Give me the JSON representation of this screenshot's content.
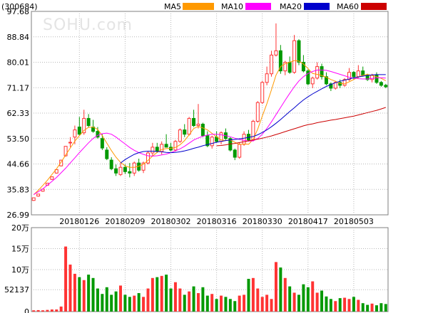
{
  "header": {
    "code": "(300684)",
    "watermark": "SOHU.com"
  },
  "legend": [
    {
      "label": "MA5",
      "color": "#ff9900"
    },
    {
      "label": "MA10",
      "color": "#ff00ff"
    },
    {
      "label": "MA20",
      "color": "#0000cc"
    },
    {
      "label": "MA60",
      "color": "#cc0000"
    }
  ],
  "colors": {
    "up": "#ff3333",
    "down": "#009900"
  },
  "chart_data": [
    {
      "type": "candlestick",
      "title": "",
      "y_ticks": [
        "97.68",
        "88.84",
        "80.01",
        "71.17",
        "62.33",
        "53.50",
        "44.66",
        "35.83",
        "26.99"
      ],
      "ylim": [
        26.99,
        97.68
      ],
      "x_ticks": [
        {
          "index": 10,
          "label": "20180126"
        },
        {
          "index": 20,
          "label": "20180209"
        },
        {
          "index": 30,
          "label": "20180302"
        },
        {
          "index": 40,
          "label": "20180316"
        },
        {
          "index": 50,
          "label": "20180330"
        },
        {
          "index": 60,
          "label": "20180417"
        },
        {
          "index": 70,
          "label": "20180503"
        }
      ],
      "grid": true,
      "ohlc": [
        [
          32.0,
          32.9,
          31.8,
          32.9
        ],
        [
          33.5,
          34.2,
          33.3,
          34.2
        ],
        [
          35.2,
          35.9,
          35.0,
          35.9
        ],
        [
          37.3,
          38.0,
          37.1,
          38.0
        ],
        [
          39.3,
          40.2,
          39.1,
          40.2
        ],
        [
          41.5,
          42.7,
          41.3,
          42.7
        ],
        [
          44.0,
          46.0,
          43.8,
          46.0
        ],
        [
          47.5,
          50.8,
          47.2,
          50.8
        ],
        [
          52.0,
          54.0,
          50.5,
          52.2
        ],
        [
          54.0,
          58.0,
          51.5,
          56.5
        ],
        [
          57.5,
          61.0,
          54.5,
          55.0
        ],
        [
          55.5,
          63.5,
          54.8,
          60.5
        ],
        [
          60.5,
          62.0,
          57.5,
          58.0
        ],
        [
          57.5,
          60.0,
          55.5,
          56.0
        ],
        [
          56.0,
          57.5,
          53.5,
          54.0
        ],
        [
          53.5,
          55.0,
          49.5,
          50.2
        ],
        [
          49.5,
          50.5,
          46.0,
          46.5
        ],
        [
          46.0,
          47.0,
          42.5,
          43.0
        ],
        [
          43.0,
          44.5,
          40.5,
          41.5
        ],
        [
          41.0,
          45.0,
          40.5,
          43.5
        ],
        [
          43.5,
          44.5,
          41.2,
          42.0
        ],
        [
          42.0,
          45.0,
          40.0,
          41.5
        ],
        [
          41.5,
          45.5,
          40.5,
          45.0
        ],
        [
          45.0,
          46.5,
          42.0,
          42.5
        ],
        [
          42.5,
          45.5,
          41.5,
          45.0
        ],
        [
          45.0,
          49.0,
          44.5,
          48.5
        ],
        [
          48.5,
          52.0,
          47.5,
          50.5
        ],
        [
          50.5,
          52.0,
          48.5,
          49.0
        ],
        [
          49.0,
          52.5,
          48.0,
          51.5
        ],
        [
          51.5,
          55.0,
          50.5,
          50.5
        ],
        [
          50.5,
          52.0,
          49.0,
          49.5
        ],
        [
          49.5,
          53.0,
          49.0,
          52.5
        ],
        [
          52.5,
          57.0,
          52.0,
          56.5
        ],
        [
          56.5,
          58.5,
          54.0,
          55.0
        ],
        [
          55.0,
          61.0,
          54.5,
          60.5
        ],
        [
          60.5,
          63.5,
          57.5,
          58.0
        ],
        [
          58.0,
          65.5,
          57.0,
          58.5
        ],
        [
          58.5,
          59.0,
          54.0,
          54.5
        ],
        [
          54.5,
          56.0,
          50.5,
          51.0
        ],
        [
          51.0,
          54.5,
          50.0,
          54.0
        ],
        [
          54.0,
          56.0,
          52.0,
          52.5
        ],
        [
          52.5,
          56.0,
          51.5,
          55.5
        ],
        [
          55.5,
          57.0,
          53.0,
          53.5
        ],
        [
          53.5,
          54.0,
          49.0,
          49.5
        ],
        [
          49.5,
          50.0,
          46.0,
          47.0
        ],
        [
          47.0,
          52.0,
          46.5,
          51.5
        ],
        [
          51.5,
          56.0,
          51.0,
          55.0
        ],
        [
          55.0,
          56.5,
          52.5,
          53.0
        ],
        [
          53.0,
          60.0,
          52.5,
          59.5
        ],
        [
          59.5,
          66.5,
          59.0,
          66.0
        ],
        [
          66.0,
          73.5,
          65.5,
          73.0
        ],
        [
          73.0,
          78.5,
          72.0,
          76.0
        ],
        [
          76.0,
          84.0,
          75.0,
          82.5
        ],
        [
          82.5,
          93.5,
          82.0,
          84.0
        ],
        [
          84.0,
          86.0,
          76.0,
          77.0
        ],
        [
          77.0,
          80.5,
          75.5,
          80.0
        ],
        [
          80.0,
          82.0,
          76.0,
          76.5
        ],
        [
          76.5,
          89.5,
          76.0,
          87.5
        ],
        [
          87.5,
          88.0,
          79.0,
          80.0
        ],
        [
          80.0,
          82.5,
          76.5,
          77.0
        ],
        [
          77.0,
          77.5,
          72.0,
          72.5
        ],
        [
          72.5,
          75.0,
          71.0,
          74.5
        ],
        [
          74.5,
          80.0,
          74.0,
          78.5
        ],
        [
          78.5,
          79.5,
          74.0,
          75.0
        ],
        [
          75.0,
          76.5,
          72.0,
          72.5
        ],
        [
          72.5,
          73.0,
          70.0,
          71.0
        ],
        [
          71.0,
          73.5,
          70.5,
          73.0
        ],
        [
          73.0,
          74.0,
          71.0,
          72.0
        ],
        [
          72.0,
          74.5,
          71.5,
          74.0
        ],
        [
          74.0,
          78.0,
          73.5,
          76.5
        ],
        [
          76.5,
          77.0,
          74.0,
          75.0
        ],
        [
          75.0,
          79.0,
          74.5,
          77.0
        ],
        [
          77.0,
          78.5,
          75.0,
          75.5
        ],
        [
          75.5,
          76.0,
          73.5,
          74.0
        ],
        [
          74.0,
          76.0,
          73.0,
          75.5
        ],
        [
          75.5,
          76.5,
          72.5,
          73.0
        ],
        [
          73.0,
          73.5,
          71.5,
          72.0
        ],
        [
          72.0,
          72.5,
          71.0,
          71.5
        ]
      ],
      "ma": {
        "MA5": [
          34.0,
          35.5,
          37.2,
          39.0,
          41.0,
          43.0,
          45.3,
          47.8,
          50.2,
          52.6,
          54.5,
          56.3,
          57.4,
          57.5,
          56.7,
          54.5,
          51.9,
          49.3,
          47.0,
          45.2,
          44.0,
          43.5,
          43.5,
          43.9,
          44.6,
          45.9,
          47.4,
          48.7,
          49.7,
          50.0,
          50.1,
          50.4,
          51.3,
          52.8,
          54.8,
          57.0,
          57.7,
          57.2,
          56.5,
          55.3,
          54.1,
          53.0,
          52.8,
          53.0,
          52.2,
          51.4,
          51.6,
          51.5,
          53.2,
          56.8,
          61.3,
          65.6,
          70.4,
          75.5,
          78.5,
          79.5,
          80.0,
          80.6,
          80.4,
          79.4,
          77.8,
          76.1,
          75.8,
          75.4,
          74.8,
          74.0,
          73.4,
          72.7,
          72.5,
          73.2,
          74.0,
          74.8,
          75.5,
          75.8,
          75.4,
          75.0,
          74.4,
          73.6
        ],
        "MA10": [
          34.0,
          35.0,
          36.0,
          37.3,
          38.6,
          40.0,
          41.6,
          43.2,
          45.0,
          46.8,
          48.6,
          50.3,
          52.0,
          53.5,
          54.6,
          55.2,
          55.4,
          55.0,
          54.0,
          52.8,
          51.6,
          50.4,
          49.4,
          48.6,
          48.0,
          47.5,
          47.4,
          47.5,
          47.8,
          48.1,
          48.6,
          49.2,
          49.9,
          50.8,
          51.9,
          53.0,
          53.7,
          54.3,
          54.7,
          55.0,
          55.0,
          54.8,
          54.5,
          54.1,
          53.6,
          53.2,
          52.9,
          52.6,
          52.7,
          53.5,
          55.0,
          57.0,
          59.3,
          61.8,
          64.3,
          66.8,
          69.2,
          71.5,
          73.5,
          75.0,
          76.1,
          76.8,
          77.3,
          77.3,
          77.2,
          76.8,
          76.3,
          75.8,
          75.3,
          74.8,
          74.5,
          74.3,
          74.2,
          74.2,
          74.4,
          74.6,
          74.6,
          74.5
        ],
        "MA20": [
          null,
          null,
          null,
          null,
          null,
          null,
          null,
          null,
          null,
          null,
          null,
          null,
          null,
          null,
          null,
          null,
          null,
          null,
          null,
          45.0,
          46.2,
          47.1,
          48.0,
          48.6,
          49.0,
          49.1,
          49.1,
          49.0,
          48.9,
          48.7,
          48.6,
          48.7,
          48.9,
          49.2,
          49.6,
          50.1,
          50.5,
          51.0,
          51.4,
          51.8,
          52.2,
          52.5,
          52.8,
          53.0,
          53.2,
          53.4,
          53.6,
          53.9,
          54.2,
          54.8,
          55.6,
          56.5,
          57.6,
          58.8,
          60.1,
          61.5,
          62.9,
          64.2,
          65.6,
          66.9,
          68.0,
          69.0,
          69.9,
          70.8,
          71.6,
          72.3,
          72.9,
          73.4,
          73.8,
          74.2,
          74.6,
          74.9,
          75.2,
          75.4,
          75.6,
          75.7,
          75.7,
          75.7
        ],
        "MA60": [
          null,
          null,
          null,
          null,
          null,
          null,
          null,
          null,
          null,
          null,
          null,
          null,
          null,
          null,
          null,
          null,
          null,
          null,
          null,
          null,
          null,
          null,
          null,
          null,
          null,
          null,
          null,
          null,
          null,
          null,
          null,
          null,
          null,
          null,
          null,
          null,
          null,
          null,
          null,
          null,
          51.0,
          51.1,
          51.3,
          51.6,
          51.8,
          52.1,
          52.4,
          52.7,
          53.0,
          53.3,
          53.6,
          54.0,
          54.4,
          54.9,
          55.4,
          55.9,
          56.4,
          56.9,
          57.4,
          57.9,
          58.3,
          58.6,
          59.0,
          59.3,
          59.6,
          59.9,
          60.1,
          60.4,
          60.7,
          61.0,
          61.3,
          61.7,
          62.1,
          62.5,
          62.9,
          63.3,
          63.8,
          64.3
        ]
      }
    },
    {
      "type": "bar",
      "title": "",
      "y_ticks": [
        "20万",
        "15万",
        "10万",
        "52137",
        "0"
      ],
      "ylim": [
        0,
        200000
      ],
      "values": [
        3000,
        3500,
        3000,
        4000,
        5000,
        5000,
        12000,
        155000,
        112000,
        90000,
        82000,
        75000,
        88000,
        80000,
        55000,
        42000,
        58000,
        40000,
        48000,
        62000,
        40000,
        35000,
        38000,
        44000,
        35000,
        55000,
        80000,
        82000,
        85000,
        88000,
        55000,
        70000,
        55000,
        40000,
        48000,
        60000,
        44000,
        58000,
        38000,
        42000,
        30000,
        38000,
        35000,
        30000,
        25000,
        38000,
        40000,
        78000,
        80000,
        55000,
        35000,
        40000,
        30000,
        118000,
        105000,
        80000,
        60000,
        45000,
        40000,
        65000,
        58000,
        72000,
        45000,
        50000,
        36000,
        30000,
        25000,
        32000,
        33000,
        30000,
        35000,
        28000,
        20000,
        16000,
        19000,
        15000,
        20000,
        18000
      ]
    }
  ]
}
